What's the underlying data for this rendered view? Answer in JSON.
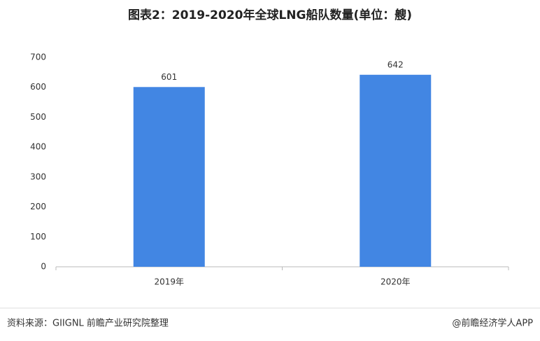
{
  "chart_data": {
    "type": "bar",
    "title": "图表2：2019-2020年全球LNG船队数量(单位：艘)",
    "categories": [
      "2019年",
      "2020年"
    ],
    "values": [
      601,
      642
    ],
    "color": "#4286e3",
    "ylim": [
      0,
      700
    ],
    "yticks": [
      0,
      100,
      200,
      300,
      400,
      500,
      600,
      700
    ],
    "grid": false
  },
  "footer": {
    "source": "资料来源：GIIGNL 前瞻产业研究院整理",
    "credit": "@前瞻经济学人APP"
  }
}
